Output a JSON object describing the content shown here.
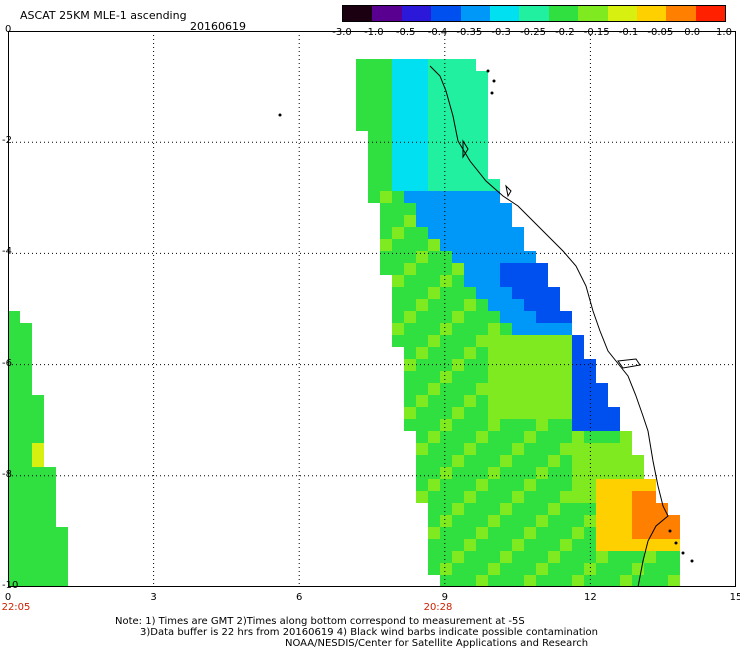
{
  "header": {
    "title": "ASCAT 25KM MLE-1 ascending",
    "date": "20160619"
  },
  "colorbar": {
    "labels": [
      "-3.0",
      "-1.0",
      "-0.5",
      "-0.4",
      "-0.35",
      "-0.3",
      "-0.25",
      "-0.2",
      "-0.15",
      "-0.1",
      "-0.05",
      "0.0",
      "1.0"
    ],
    "colors": [
      "#1a0010",
      "#5a0090",
      "#2b18d8",
      "#0050f0",
      "#0098f8",
      "#00e0f0",
      "#20f0a0",
      "#30e040",
      "#80ea20",
      "#d8f010",
      "#ffd000",
      "#ff8000",
      "#ff2000"
    ]
  },
  "axes": {
    "x_ticks": [
      "0",
      "3",
      "6",
      "9",
      "12",
      "15"
    ],
    "y_ticks": [
      "0",
      "-2",
      "-4",
      "-6",
      "-8",
      "-10"
    ]
  },
  "time_labels": [
    "22:05",
    "20:28"
  ],
  "note": {
    "line1": "Note: 1) Times are GMT 2)Times along bottom correspond to measurement at -5S",
    "line2": "3)Data buffer is 22 hrs from 20160619 4) Black wind barbs indicate possible contamination",
    "line3": "NOAA/NESDIS/Center for Satellite Applications and Research"
  }
}
